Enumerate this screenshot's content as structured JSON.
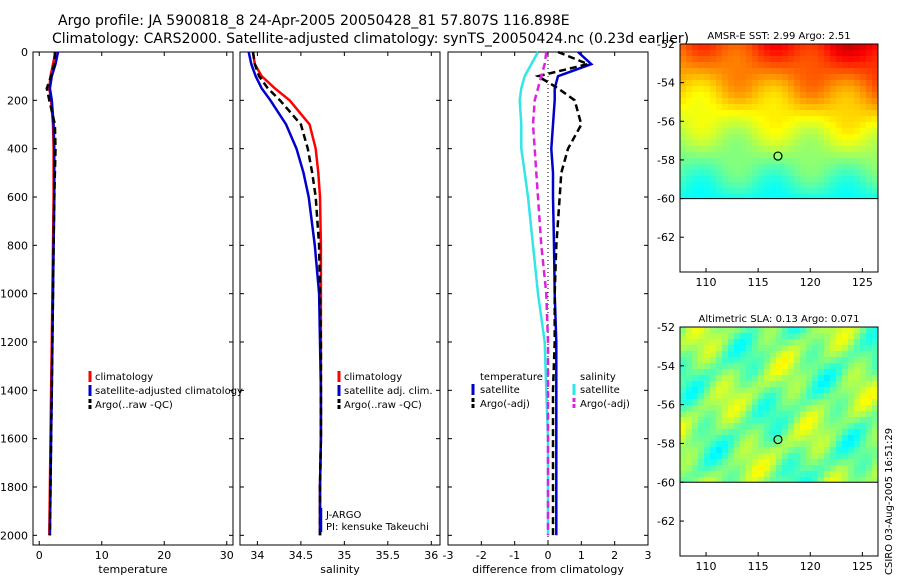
{
  "titles": {
    "line1": "Argo profile: JA 5900818_8 24-Apr-2005 20050428_81 57.807S 116.898E",
    "line2": "Climatology: CARS2000. Satellite-adjusted climatology: synTS_20050424.nc (0.23d earlier)"
  },
  "signature": "CSIRO 03-Aug-2005 16:51:29",
  "colors": {
    "red": "#ff0000",
    "blue": "#0000cc",
    "black": "#000000",
    "cyan": "#33e6e6",
    "magenta": "#dd22dd"
  },
  "chart_data": [
    {
      "type": "line",
      "xlabel": "temperature",
      "xlim": [
        -1,
        31
      ],
      "ylim": [
        2040,
        0
      ],
      "xticks": [
        0,
        10,
        20,
        30
      ],
      "xtick_labels": [
        "0",
        "10",
        "20",
        "30"
      ],
      "yticks": [
        0,
        200,
        400,
        600,
        800,
        1000,
        1200,
        1400,
        1600,
        1800,
        2000
      ],
      "ytick_labels": [
        "0",
        "200",
        "400",
        "600",
        "800",
        "1000",
        "1200",
        "1400",
        "1600",
        "1800",
        "2000"
      ],
      "depth": [
        0,
        50,
        100,
        150,
        200,
        300,
        400,
        500,
        600,
        800,
        1000,
        1200,
        1400,
        1600,
        1800,
        2000
      ],
      "series": [
        {
          "name": "climatology",
          "color": "red",
          "style": "solid",
          "values": [
            2.6,
            2.2,
            1.8,
            1.6,
            1.9,
            2.2,
            2.3,
            2.3,
            2.3,
            2.2,
            2.1,
            2.0,
            1.9,
            1.8,
            1.7,
            1.6
          ]
        },
        {
          "name": "satellite-adjusted climatology",
          "color": "blue",
          "style": "solid",
          "values": [
            3.0,
            2.6,
            2.0,
            1.7,
            2.0,
            2.3,
            2.4,
            2.4,
            2.4,
            2.3,
            2.2,
            2.1,
            2.0,
            1.9,
            1.8,
            1.7
          ]
        },
        {
          "name": "Argo(..raw -QC)",
          "color": "black",
          "style": "dashed",
          "values": [
            2.5,
            2.4,
            1.9,
            1.2,
            1.6,
            2.5,
            2.6,
            2.5,
            2.4,
            2.3,
            2.2,
            2.1,
            2.0,
            1.9,
            1.8,
            1.7
          ]
        }
      ],
      "legend": {
        "position": "middle-right",
        "entries": [
          "climatology",
          "satellite-adjusted climatology",
          "Argo(..raw -QC)"
        ]
      }
    },
    {
      "type": "line",
      "xlabel": "salinity",
      "xlim": [
        33.8,
        36.1
      ],
      "ylim": [
        2040,
        0
      ],
      "xticks": [
        34,
        34.5,
        35,
        35.5,
        36
      ],
      "xtick_labels": [
        "34",
        "34.5",
        "35",
        "35.5",
        "36"
      ],
      "depth": [
        0,
        50,
        100,
        150,
        200,
        300,
        400,
        500,
        600,
        800,
        1000,
        1200,
        1400,
        1600,
        1800,
        2000
      ],
      "series": [
        {
          "name": "climatology",
          "color": "red",
          "style": "solid",
          "values": [
            33.95,
            33.97,
            34.05,
            34.2,
            34.37,
            34.6,
            34.67,
            34.7,
            34.72,
            34.73,
            34.73,
            34.73,
            34.73,
            34.73,
            34.72,
            34.72
          ]
        },
        {
          "name": "satellite adj. clim.",
          "color": "blue",
          "style": "solid",
          "values": [
            33.9,
            33.93,
            33.98,
            34.05,
            34.15,
            34.33,
            34.45,
            34.53,
            34.59,
            34.66,
            34.71,
            34.72,
            34.73,
            34.73,
            34.72,
            34.72
          ]
        },
        {
          "name": "Argo(..raw -QC)",
          "color": "black",
          "style": "dashed",
          "values": [
            33.95,
            33.97,
            34.02,
            34.12,
            34.26,
            34.5,
            34.58,
            34.63,
            34.67,
            34.71,
            34.72,
            34.73,
            34.73,
            34.73,
            34.72,
            34.72
          ]
        }
      ],
      "legend": {
        "position": "middle-right",
        "entries": [
          "climatology",
          "satellite adj. clim.",
          "Argo(..raw -QC)"
        ]
      },
      "annotation": [
        "J-ARGO",
        "PI: kensuke Takeuchi"
      ]
    },
    {
      "type": "line",
      "xlabel": "difference from climatology",
      "xlim": [
        -3,
        3
      ],
      "ylim": [
        2040,
        0
      ],
      "xticks": [
        -3,
        -2,
        -1,
        0,
        1,
        2,
        3
      ],
      "xtick_labels": [
        "-3",
        "-2",
        "-1",
        "0",
        "1",
        "2",
        "3"
      ],
      "depth": [
        0,
        50,
        100,
        150,
        200,
        300,
        400,
        500,
        600,
        800,
        1000,
        1200,
        1400,
        1600,
        1800,
        2000
      ],
      "series": [
        {
          "name": "temperature satellite",
          "color": "blue",
          "style": "solid",
          "values": [
            0.9,
            1.3,
            0.3,
            0.2,
            0.2,
            0.15,
            0.1,
            0.15,
            0.15,
            0.18,
            0.2,
            0.25,
            0.25,
            0.25,
            0.25,
            0.25
          ]
        },
        {
          "name": "temperature Argo(-adj)",
          "color": "black",
          "style": "dashed",
          "values": [
            0.3,
            1.2,
            -0.3,
            0.3,
            0.8,
            1.0,
            0.6,
            0.4,
            0.35,
            0.25,
            0.2,
            0.2,
            0.15,
            0.15,
            0.15,
            0.15
          ]
        },
        {
          "name": "salinity satellite",
          "color": "cyan",
          "style": "solid",
          "values": [
            -0.3,
            -0.5,
            -0.7,
            -0.8,
            -0.85,
            -0.8,
            -0.8,
            -0.7,
            -0.6,
            -0.45,
            -0.3,
            -0.1,
            -0.05,
            0.0,
            0.0,
            0.0
          ]
        },
        {
          "name": "salinity Argo(-adj)",
          "color": "magenta",
          "style": "dashed",
          "values": [
            -0.05,
            -0.1,
            -0.2,
            -0.3,
            -0.4,
            -0.45,
            -0.4,
            -0.35,
            -0.3,
            -0.2,
            -0.05,
            0.0,
            0.0,
            0.0,
            0.0,
            0.0
          ]
        }
      ],
      "legend_left": {
        "heading": "temperature",
        "entries": [
          "satellite",
          "Argo(-adj)"
        ]
      },
      "legend_right": {
        "heading": "salinity",
        "entries": [
          "satellite",
          "Argo(-adj)"
        ]
      }
    },
    {
      "type": "heatmap",
      "title": "AMSR-E SST: 2.99 Argo: 2.51",
      "xlim": [
        107.5,
        126.5
      ],
      "ylim": [
        -63.8,
        -52
      ],
      "xticks": [
        110,
        115,
        120,
        125
      ],
      "xtick_labels": [
        "110",
        "115",
        "120",
        "125"
      ],
      "yticks": [
        -52,
        -54,
        -56,
        -58,
        -60,
        -62
      ],
      "ytick_labels": [
        "-52",
        "-54",
        "-56",
        "-58",
        "-60",
        "-62"
      ],
      "data_lat_min": -60,
      "marker": {
        "lon": 116.9,
        "lat": -57.8
      },
      "field": "sst",
      "colormap": "jet"
    },
    {
      "type": "heatmap",
      "title": "Altimetric SLA: 0.13 Argo: 0.071",
      "xlim": [
        107.5,
        126.5
      ],
      "ylim": [
        -63.8,
        -52
      ],
      "xticks": [
        110,
        115,
        120,
        125
      ],
      "xtick_labels": [
        "110",
        "115",
        "120",
        "125"
      ],
      "yticks": [
        -52,
        -54,
        -56,
        -58,
        -60,
        -62
      ],
      "ytick_labels": [
        "-52",
        "-54",
        "-56",
        "-58",
        "-60",
        "-62"
      ],
      "data_lat_min": -60,
      "marker": {
        "lon": 116.9,
        "lat": -57.8
      },
      "field": "sla",
      "colormap": "jet"
    }
  ]
}
